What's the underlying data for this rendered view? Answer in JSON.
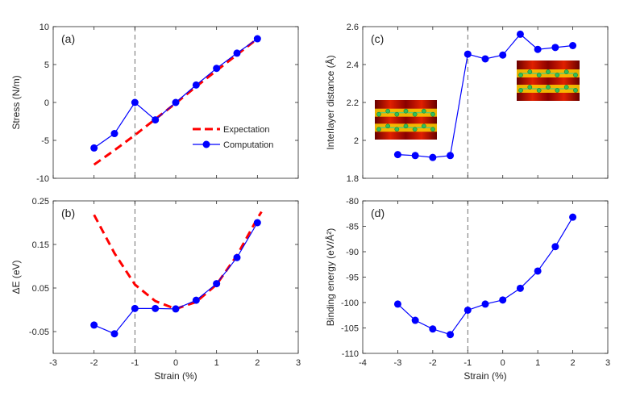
{
  "figure": {
    "style": {
      "computation_color": "#0000ff",
      "expectation_color": "#ff0000",
      "axis_color": "#262626",
      "reference_line_color": "#000000"
    },
    "reference_strain": -1
  },
  "chart_data": [
    {
      "id": "a",
      "type": "line",
      "panel_label": "(a)",
      "title": "",
      "xlabel": "",
      "ylabel": "Stress (N/m)",
      "xlim": [
        -3,
        3
      ],
      "ylim": [
        -10,
        10
      ],
      "xticks": [
        -3,
        -2,
        -1,
        0,
        1,
        2,
        3
      ],
      "xtick_labels": [],
      "yticks": [
        -10,
        -5,
        0,
        5,
        10
      ],
      "ytick_labels": [
        "-10",
        "-5",
        "0",
        "5",
        "10"
      ],
      "series": [
        {
          "name": "Expectation",
          "style": "dashed",
          "x": [
            -2,
            -1.5,
            -1,
            -0.5,
            0,
            0.5,
            1,
            1.5,
            2
          ],
          "y": [
            -8.2,
            -6.3,
            -4.3,
            -2.2,
            -0.1,
            2.1,
            4.2,
            6.3,
            8.4
          ]
        },
        {
          "name": "Computation",
          "style": "line-marker",
          "x": [
            -2,
            -1.5,
            -1,
            -0.5,
            0,
            0.5,
            1,
            1.5,
            2
          ],
          "y": [
            -6.0,
            -4.1,
            0.0,
            -2.3,
            0.0,
            2.3,
            4.5,
            6.5,
            8.4
          ]
        }
      ],
      "legend": {
        "location": "center-right",
        "entries": [
          "Expectation",
          "Computation"
        ]
      }
    },
    {
      "id": "b",
      "type": "line",
      "panel_label": "(b)",
      "title": "",
      "xlabel": "Strain (%)",
      "ylabel": "ΔE (eV)",
      "xlim": [
        -3,
        3
      ],
      "ylim": [
        -0.1,
        0.25
      ],
      "xticks": [
        -3,
        -2,
        -1,
        0,
        1,
        2,
        3
      ],
      "xtick_labels": [
        "-3",
        "-2",
        "-1",
        "0",
        "1",
        "2",
        "3"
      ],
      "yticks": [
        -0.05,
        0.05,
        0.15,
        0.25
      ],
      "ytick_labels": [
        "-0.05",
        "0.05",
        "0.15",
        "0.25"
      ],
      "series": [
        {
          "name": "Expectation",
          "style": "dashed",
          "x": [
            -2,
            -1.5,
            -1,
            -0.5,
            0,
            0.5,
            1,
            1.5,
            2,
            2.1
          ],
          "y": [
            0.218,
            0.13,
            0.058,
            0.02,
            0.002,
            0.018,
            0.058,
            0.125,
            0.21,
            0.225
          ]
        },
        {
          "name": "Computation",
          "style": "line-marker",
          "x": [
            -2,
            -1.5,
            -1,
            -0.5,
            0,
            0.5,
            1,
            1.5,
            2
          ],
          "y": [
            -0.035,
            -0.055,
            0.003,
            0.003,
            0.002,
            0.022,
            0.06,
            0.12,
            0.2
          ]
        }
      ]
    },
    {
      "id": "c",
      "type": "line",
      "panel_label": "(c)",
      "title": "",
      "xlabel": "",
      "ylabel": "Interlayer distance (Å)",
      "xlim": [
        -4,
        3
      ],
      "ylim": [
        1.8,
        2.6
      ],
      "xticks": [
        -4,
        -3,
        -2,
        -1,
        0,
        1,
        2,
        3
      ],
      "xtick_labels": [],
      "yticks": [
        1.8,
        2.0,
        2.2,
        2.4,
        2.6
      ],
      "ytick_labels": [
        "1.8",
        "2",
        "2.2",
        "2.4",
        "2.6"
      ],
      "series": [
        {
          "name": "Computation",
          "style": "line-marker",
          "x": [
            -3,
            -2.5,
            -2,
            -1.5,
            -1,
            -0.5,
            0,
            0.5,
            1,
            1.5,
            2
          ],
          "y": [
            1.925,
            1.92,
            1.91,
            1.92,
            2.455,
            2.43,
            2.45,
            2.56,
            2.48,
            2.49,
            2.5
          ]
        }
      ],
      "insets": [
        {
          "name": "interlayer-structure-compressed",
          "location": "left"
        },
        {
          "name": "interlayer-structure-stretched",
          "location": "upper-right"
        }
      ]
    },
    {
      "id": "d",
      "type": "line",
      "panel_label": "(d)",
      "title": "",
      "xlabel": "Strain (%)",
      "ylabel": "Binding energy (eV/Å²)",
      "xlim": [
        -4,
        3
      ],
      "ylim": [
        -110,
        -80
      ],
      "xticks": [
        -4,
        -3,
        -2,
        -1,
        0,
        1,
        2,
        3
      ],
      "xtick_labels": [
        "-4",
        "-3",
        "-2",
        "-1",
        "0",
        "1",
        "2",
        "3"
      ],
      "yticks": [
        -110,
        -105,
        -100,
        -95,
        -90,
        -85,
        -80
      ],
      "ytick_labels": [
        "-110",
        "-105",
        "-100",
        "-95",
        "-90",
        "-85",
        "-80"
      ],
      "series": [
        {
          "name": "Computation",
          "style": "line-marker",
          "x": [
            -3,
            -2.5,
            -2,
            -1.5,
            -1,
            -0.5,
            0,
            0.5,
            1,
            1.5,
            2
          ],
          "y": [
            -100.3,
            -103.5,
            -105.2,
            -106.3,
            -101.5,
            -100.3,
            -99.5,
            -97.2,
            -93.8,
            -89.0,
            -83.2
          ]
        }
      ]
    }
  ]
}
